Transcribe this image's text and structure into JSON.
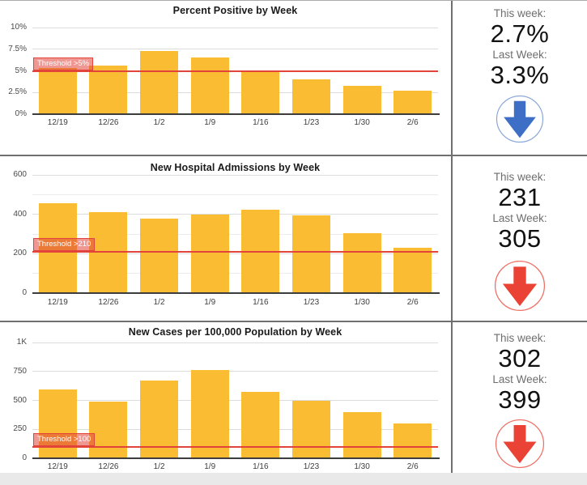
{
  "chart_data": [
    {
      "type": "bar",
      "title": "Percent Positive by Week",
      "categories": [
        "12/19",
        "12/26",
        "1/2",
        "1/9",
        "1/16",
        "1/23",
        "1/30",
        "2/6"
      ],
      "values": [
        5.3,
        5.6,
        7.3,
        6.5,
        5.0,
        4.0,
        3.3,
        2.7
      ],
      "ylabel": "",
      "xlabel": "",
      "ylim": [
        0,
        10
      ],
      "grid": "on",
      "yticks": [
        {
          "v": 0,
          "label": "0%"
        },
        {
          "v": 2.5,
          "label": "2.5%"
        },
        {
          "v": 5,
          "label": "5%"
        },
        {
          "v": 7.5,
          "label": "7.5%"
        },
        {
          "v": 10,
          "label": "10%"
        }
      ],
      "minor_gridlines": [],
      "threshold": {
        "value": 5,
        "label": "Threshold >5%"
      }
    },
    {
      "type": "bar",
      "title": "New Hospital Admissions by Week",
      "categories": [
        "12/19",
        "12/26",
        "1/2",
        "1/9",
        "1/16",
        "1/23",
        "1/30",
        "2/6"
      ],
      "values": [
        455,
        410,
        378,
        398,
        422,
        393,
        305,
        231
      ],
      "ylabel": "",
      "xlabel": "",
      "ylim": [
        0,
        600
      ],
      "grid": "on",
      "yticks": [
        {
          "v": 0,
          "label": "0"
        },
        {
          "v": 200,
          "label": "200"
        },
        {
          "v": 400,
          "label": "400"
        },
        {
          "v": 600,
          "label": "600"
        }
      ],
      "minor_gridlines": [
        100,
        300,
        500
      ],
      "threshold": {
        "value": 210,
        "label": "Threshold >210"
      }
    },
    {
      "type": "bar",
      "title": "New Cases per 100,000 Population by Week",
      "categories": [
        "12/19",
        "12/26",
        "1/2",
        "1/9",
        "1/16",
        "1/23",
        "1/30",
        "2/6"
      ],
      "values": [
        595,
        490,
        670,
        760,
        575,
        500,
        399,
        302
      ],
      "ylabel": "",
      "xlabel": "",
      "ylim": [
        0,
        1000
      ],
      "grid": "on",
      "yticks": [
        {
          "v": 0,
          "label": "0"
        },
        {
          "v": 250,
          "label": "250"
        },
        {
          "v": 500,
          "label": "500"
        },
        {
          "v": 750,
          "label": "750"
        },
        {
          "v": 1000,
          "label": "1K"
        }
      ],
      "minor_gridlines": [],
      "threshold": {
        "value": 100,
        "label": "Threshold >100"
      }
    }
  ],
  "panels": [
    {
      "this_label": "This week:",
      "this_value": "2.7%",
      "last_label": "Last Week:",
      "last_value": "3.3%",
      "arrow_icon": "down-arrow-icon",
      "arrow_color": "#3D6FC7",
      "circle_color": "#8AA7DA",
      "arrow_size": 60
    },
    {
      "this_label": "This week:",
      "this_value": "231",
      "last_label": "Last Week:",
      "last_value": "305",
      "arrow_icon": "down-arrow-icon",
      "arrow_color": "#EA4335",
      "circle_color": "#EE7065",
      "arrow_size": 64
    },
    {
      "this_label": "This week:",
      "this_value": "302",
      "last_label": "Last Week:",
      "last_value": "399",
      "arrow_icon": "down-arrow-icon",
      "arrow_color": "#EA4335",
      "circle_color": "#EE7065",
      "arrow_size": 62
    }
  ],
  "colors": {
    "bar": "#F9BC33",
    "threshold_line": "#E2443B",
    "threshold_label_bg": "rgba(226,68,59,0.55)",
    "threshold_label_text": "#FFFFFF",
    "divider": "#6F6F6F",
    "bottom_gutter": "#E9E9E9"
  }
}
